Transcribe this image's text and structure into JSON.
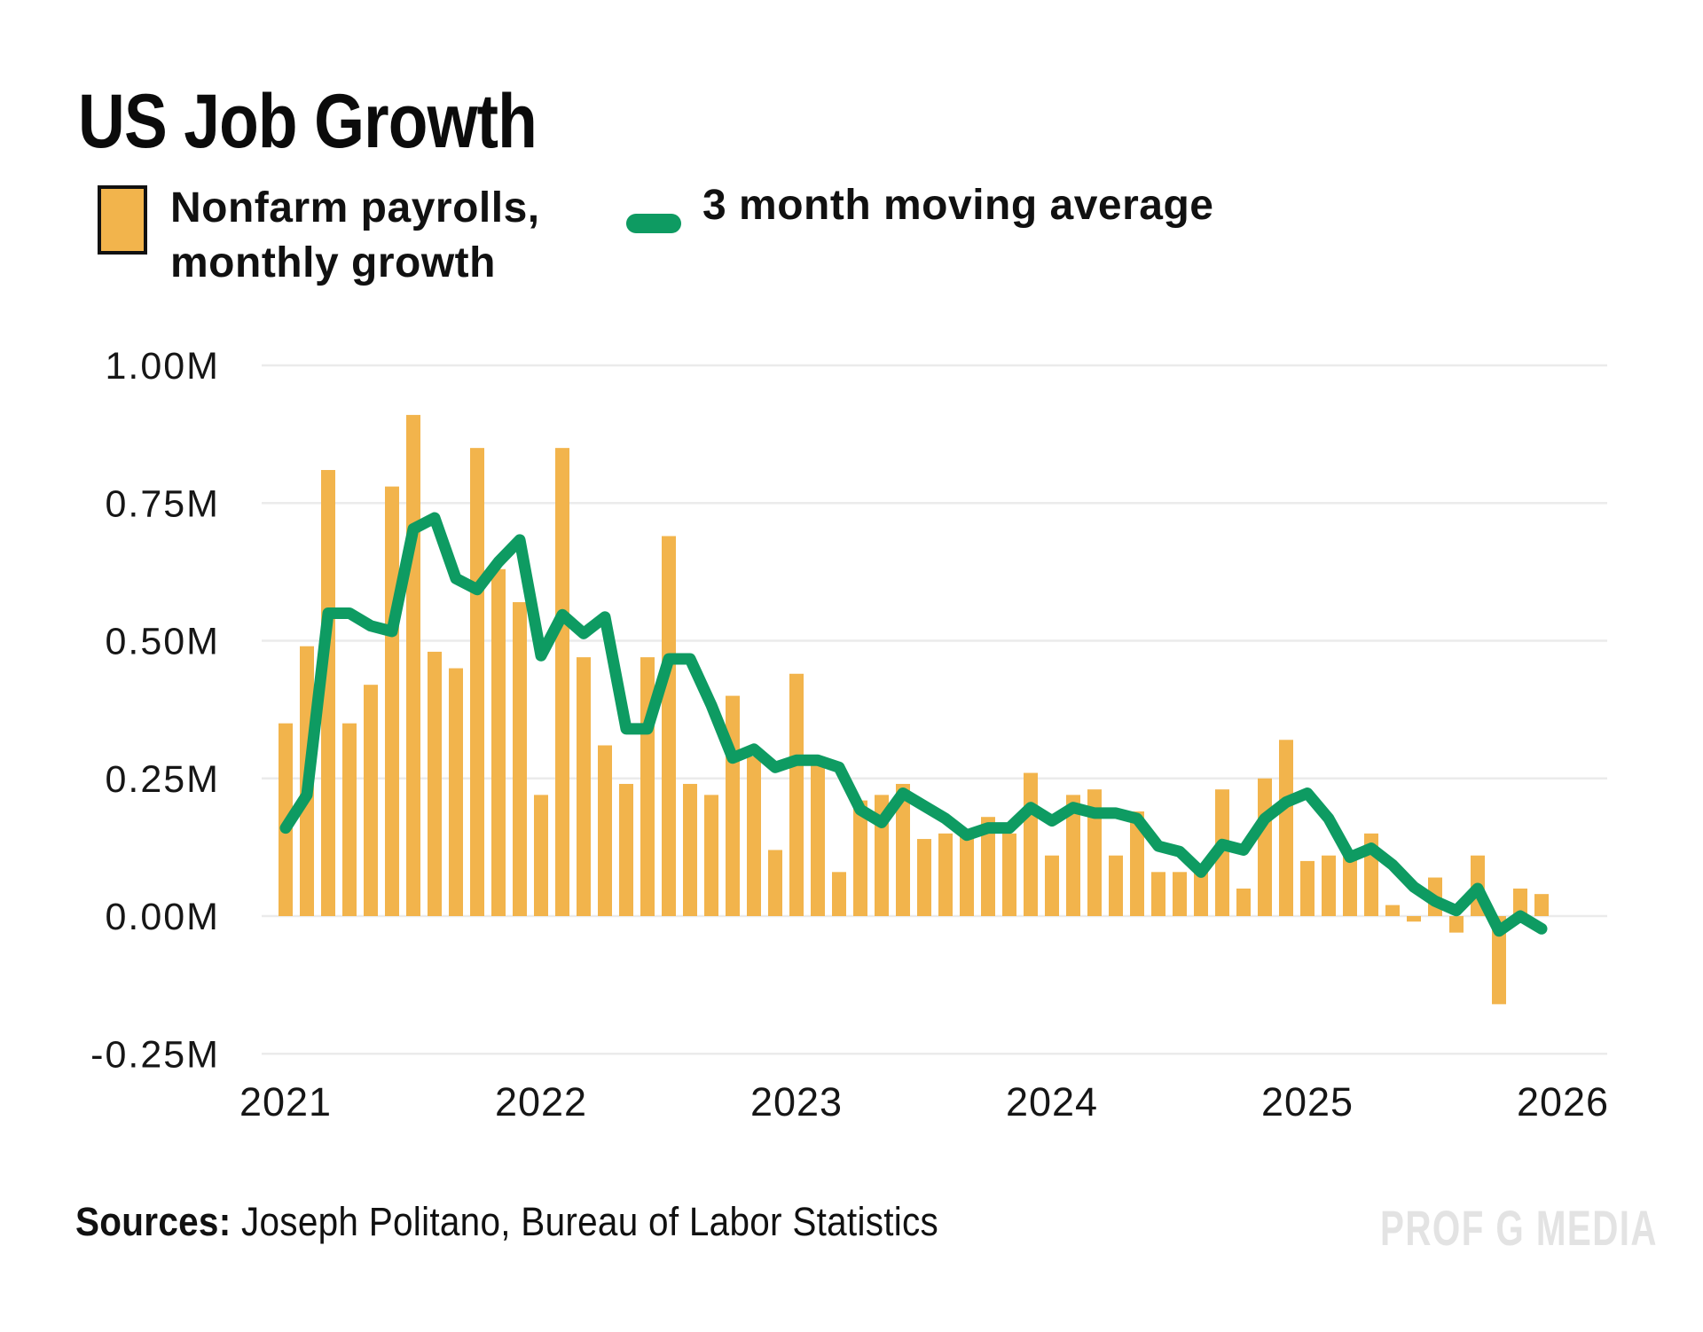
{
  "header": {
    "title": "US Job Growth"
  },
  "legend": {
    "bars_label": "Nonfarm payrolls,\nmonthly growth",
    "line_label": "3 month moving average"
  },
  "footer": {
    "sources_prefix": "Sources:",
    "sources_text": " Joseph Politano, Bureau of Labor Statistics",
    "watermark": "PROF G MEDIA"
  },
  "colors": {
    "bar": "#F2B44C",
    "line": "#0E9B62",
    "grid": "#EBEBEB",
    "text": "#161616",
    "watermark": "#E3E3E3",
    "background": "#FFFFFF",
    "legend_swatch_border": "#111111"
  },
  "chart_data": {
    "type": "bar",
    "title": "US Job Growth",
    "xlabel": "",
    "ylabel": "",
    "unit_suffix": "M",
    "ylim": [
      -0.25,
      1.0
    ],
    "grid": true,
    "legend_position": "top-left",
    "x": [
      "2021-01",
      "2021-02",
      "2021-03",
      "2021-04",
      "2021-05",
      "2021-06",
      "2021-07",
      "2021-08",
      "2021-09",
      "2021-10",
      "2021-11",
      "2021-12",
      "2022-01",
      "2022-02",
      "2022-03",
      "2022-04",
      "2022-05",
      "2022-06",
      "2022-07",
      "2022-08",
      "2022-09",
      "2022-10",
      "2022-11",
      "2022-12",
      "2023-01",
      "2023-02",
      "2023-03",
      "2023-04",
      "2023-05",
      "2023-06",
      "2023-07",
      "2023-08",
      "2023-09",
      "2023-10",
      "2023-11",
      "2023-12",
      "2024-01",
      "2024-02",
      "2024-03",
      "2024-04",
      "2024-05",
      "2024-06",
      "2024-07",
      "2024-08",
      "2024-09",
      "2024-10",
      "2024-11",
      "2024-12",
      "2025-01",
      "2025-02",
      "2025-03",
      "2025-04",
      "2025-05",
      "2025-06",
      "2025-07",
      "2025-08",
      "2025-09",
      "2025-10",
      "2025-11",
      "2025-12"
    ],
    "series": [
      {
        "name": "Nonfarm payrolls, monthly growth",
        "type": "bar",
        "values": [
          0.35,
          0.49,
          0.81,
          0.35,
          0.42,
          0.78,
          0.91,
          0.48,
          0.45,
          0.85,
          0.63,
          0.57,
          0.22,
          0.85,
          0.47,
          0.31,
          0.24,
          0.47,
          0.69,
          0.24,
          0.22,
          0.4,
          0.29,
          0.12,
          0.44,
          0.29,
          0.08,
          0.21,
          0.22,
          0.24,
          0.14,
          0.15,
          0.15,
          0.18,
          0.15,
          0.26,
          0.11,
          0.22,
          0.23,
          0.11,
          0.19,
          0.08,
          0.08,
          0.08,
          0.23,
          0.05,
          0.25,
          0.32,
          0.1,
          0.11,
          0.11,
          0.15,
          0.02,
          -0.01,
          0.07,
          -0.03,
          0.11,
          -0.16,
          0.05,
          0.04
        ]
      },
      {
        "name": "3 month moving average",
        "type": "line",
        "values": [
          0.16,
          0.22,
          0.55,
          0.55,
          0.527,
          0.517,
          0.703,
          0.723,
          0.613,
          0.593,
          0.643,
          0.683,
          0.473,
          0.547,
          0.513,
          0.543,
          0.34,
          0.34,
          0.467,
          0.467,
          0.383,
          0.287,
          0.303,
          0.27,
          0.283,
          0.283,
          0.27,
          0.193,
          0.17,
          0.223,
          0.2,
          0.177,
          0.147,
          0.16,
          0.16,
          0.197,
          0.173,
          0.197,
          0.187,
          0.187,
          0.177,
          0.127,
          0.117,
          0.08,
          0.13,
          0.12,
          0.177,
          0.207,
          0.223,
          0.177,
          0.107,
          0.123,
          0.093,
          0.053,
          0.027,
          0.01,
          0.05,
          -0.027,
          0.0,
          -0.023
        ]
      }
    ],
    "y_ticks": [
      {
        "value": 1.0,
        "label": "1.00M"
      },
      {
        "value": 0.75,
        "label": "0.75M"
      },
      {
        "value": 0.5,
        "label": "0.50M"
      },
      {
        "value": 0.25,
        "label": "0.25M"
      },
      {
        "value": 0.0,
        "label": "0.00M"
      },
      {
        "value": -0.25,
        "label": "-0.25M"
      }
    ],
    "x_ticks": [
      {
        "label": "2021",
        "month_index": 0
      },
      {
        "label": "2022",
        "month_index": 12
      },
      {
        "label": "2023",
        "month_index": 24
      },
      {
        "label": "2024",
        "month_index": 36
      },
      {
        "label": "2025",
        "month_index": 48
      },
      {
        "label": "2026",
        "month_index": 60
      }
    ]
  }
}
